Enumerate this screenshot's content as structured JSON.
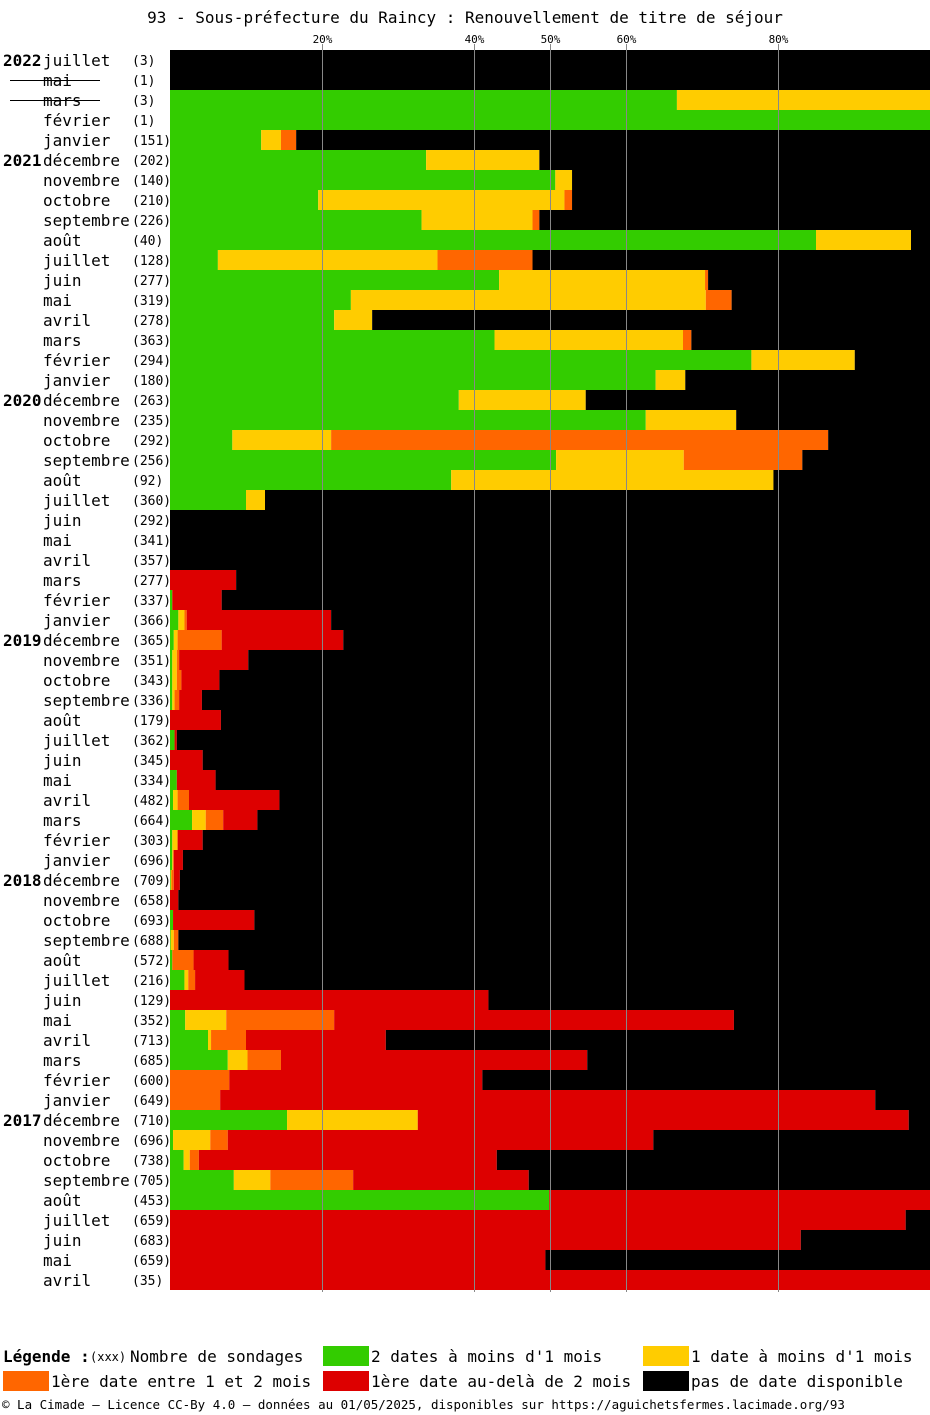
{
  "title": "93 - Sous-préfecture du Raincy : Renouvellement de titre de séjour",
  "colors": {
    "green": "#33cc00",
    "yellow": "#ffcc00",
    "orange": "#ff6600",
    "red": "#dd0000",
    "black": "#000000"
  },
  "legend": {
    "title": "Légende :",
    "count_marker": "(xxx)",
    "count_label": "Nombre de sondages",
    "items": [
      {
        "color": "#33cc00",
        "label": "2 dates à moins d'1 mois"
      },
      {
        "color": "#ffcc00",
        "label": "1 date à moins d'1 mois"
      },
      {
        "color": "#ff6600",
        "label": "1ère date entre 1 et 2 mois"
      },
      {
        "color": "#dd0000",
        "label": "1ère date au-delà de 2 mois"
      },
      {
        "color": "#000000",
        "label": "pas de date disponible"
      }
    ]
  },
  "footer": "© La Cimade — Licence CC-By 4.0 — données au 01/05/2025, disponibles sur https://aguichetsfermes.lacimade.org/93",
  "chart_data": {
    "type": "bar",
    "orientation": "horizontal",
    "stacked": true,
    "xlim": [
      0,
      100
    ],
    "x_ticks": [
      20,
      40,
      50,
      60,
      80
    ],
    "x_tick_labels": [
      "20%",
      "40%",
      "50%",
      "60%",
      "80%"
    ],
    "series_order": [
      "green",
      "yellow",
      "orange",
      "red",
      "black"
    ],
    "rows": [
      {
        "year": "2022",
        "month": "juillet",
        "count": "(3)",
        "sep": true,
        "values": [
          0,
          0,
          0,
          0,
          100
        ]
      },
      {
        "year": "",
        "month": "mai",
        "count": "(1)",
        "sep": true,
        "values": [
          0,
          0,
          0,
          0,
          100
        ]
      },
      {
        "year": "",
        "month": "mars",
        "count": "(3)",
        "values": [
          66.7,
          33.3,
          0,
          0,
          0
        ]
      },
      {
        "year": "",
        "month": "février",
        "count": "(1)",
        "values": [
          100,
          0,
          0,
          0,
          0
        ]
      },
      {
        "year": "",
        "month": "janvier",
        "count": "(151)",
        "values": [
          12.0,
          2.6,
          2.0,
          0,
          83.4
        ]
      },
      {
        "year": "2021",
        "month": "décembre",
        "count": "(202)",
        "values": [
          33.7,
          14.9,
          0,
          0,
          51.4
        ]
      },
      {
        "year": "",
        "month": "novembre",
        "count": "(140)",
        "values": [
          50.7,
          2.2,
          0,
          0,
          47.1
        ]
      },
      {
        "year": "",
        "month": "octobre",
        "count": "(210)",
        "values": [
          19.5,
          32.4,
          1.0,
          0,
          47.1
        ]
      },
      {
        "year": "",
        "month": "septembre",
        "count": "(226)",
        "values": [
          33.1,
          14.6,
          0.9,
          0,
          51.4
        ]
      },
      {
        "year": "",
        "month": "août",
        "count": "(40)",
        "values": [
          85,
          12.5,
          0,
          0,
          2.5
        ]
      },
      {
        "year": "",
        "month": "juillet",
        "count": "(128)",
        "values": [
          6.3,
          28.9,
          12.5,
          0,
          52.3
        ]
      },
      {
        "year": "",
        "month": "juin",
        "count": "(277)",
        "values": [
          43.3,
          27.1,
          0.4,
          0,
          29.2
        ]
      },
      {
        "year": "",
        "month": "mai",
        "count": "(319)",
        "values": [
          23.8,
          46.7,
          3.4,
          0,
          26.1
        ]
      },
      {
        "year": "",
        "month": "avril",
        "count": "(278)",
        "values": [
          21.6,
          5.0,
          0,
          0,
          73.4
        ]
      },
      {
        "year": "",
        "month": "mars",
        "count": "(363)",
        "values": [
          42.7,
          24.8,
          1.1,
          0,
          31.4
        ]
      },
      {
        "year": "",
        "month": "février",
        "count": "(294)",
        "values": [
          76.5,
          13.6,
          0,
          0,
          9.9
        ]
      },
      {
        "year": "",
        "month": "janvier",
        "count": "(180)",
        "values": [
          63.9,
          3.9,
          0,
          0,
          32.2
        ]
      },
      {
        "year": "2020",
        "month": "décembre",
        "count": "(263)",
        "values": [
          38.0,
          16.7,
          0,
          0,
          45.3
        ]
      },
      {
        "year": "",
        "month": "novembre",
        "count": "(235)",
        "values": [
          62.6,
          11.9,
          0,
          0,
          25.5
        ]
      },
      {
        "year": "",
        "month": "octobre",
        "count": "(292)",
        "values": [
          8.2,
          13.0,
          65.4,
          0,
          13.4
        ]
      },
      {
        "year": "",
        "month": "septembre",
        "count": "(256)",
        "values": [
          50.8,
          16.8,
          15.6,
          0,
          16.8
        ]
      },
      {
        "year": "",
        "month": "août",
        "count": "(92)",
        "values": [
          37.0,
          42.4,
          0,
          0,
          20.6
        ]
      },
      {
        "year": "",
        "month": "juillet",
        "count": "(360)",
        "values": [
          10.0,
          2.5,
          0,
          0,
          87.5
        ]
      },
      {
        "year": "",
        "month": "juin",
        "count": "(292)",
        "values": [
          0,
          0,
          0,
          0,
          100
        ]
      },
      {
        "year": "",
        "month": "mai",
        "count": "(341)",
        "values": [
          0,
          0,
          0,
          0,
          100
        ]
      },
      {
        "year": "",
        "month": "avril",
        "count": "(357)",
        "values": [
          0,
          0,
          0,
          0,
          100
        ]
      },
      {
        "year": "",
        "month": "mars",
        "count": "(277)",
        "values": [
          0,
          0,
          0,
          8.7,
          91.3
        ]
      },
      {
        "year": "",
        "month": "février",
        "count": "(337)",
        "values": [
          0.3,
          0,
          0,
          6.5,
          93.2
        ]
      },
      {
        "year": "",
        "month": "janvier",
        "count": "(366)",
        "values": [
          1.1,
          0.8,
          0.3,
          19.0,
          78.8
        ]
      },
      {
        "year": "2019",
        "month": "décembre",
        "count": "(365)",
        "values": [
          0.5,
          0.5,
          5.8,
          16.0,
          77.2
        ]
      },
      {
        "year": "",
        "month": "novembre",
        "count": "(351)",
        "values": [
          0.3,
          0.6,
          0.3,
          9.1,
          89.7
        ]
      },
      {
        "year": "",
        "month": "octobre",
        "count": "(343)",
        "values": [
          0.3,
          0.6,
          0.6,
          5.0,
          93.5
        ]
      },
      {
        "year": "",
        "month": "septembre",
        "count": "(336)",
        "values": [
          0.3,
          0.3,
          0.6,
          3.0,
          95.8
        ]
      },
      {
        "year": "",
        "month": "août",
        "count": "(179)",
        "values": [
          0,
          0,
          0,
          6.7,
          93.3
        ]
      },
      {
        "year": "",
        "month": "juillet",
        "count": "(362)",
        "values": [
          0.6,
          0,
          0,
          0.3,
          99.1
        ]
      },
      {
        "year": "",
        "month": "juin",
        "count": "(345)",
        "values": [
          0,
          0,
          0,
          4.3,
          95.7
        ]
      },
      {
        "year": "",
        "month": "mai",
        "count": "(334)",
        "values": [
          0.9,
          0,
          0,
          5.1,
          94.0
        ]
      },
      {
        "year": "",
        "month": "avril",
        "count": "(482)",
        "values": [
          0.4,
          0.6,
          1.5,
          11.9,
          85.6
        ]
      },
      {
        "year": "",
        "month": "mars",
        "count": "(664)",
        "values": [
          2.9,
          1.8,
          2.3,
          4.5,
          88.5
        ]
      },
      {
        "year": "",
        "month": "février",
        "count": "(303)",
        "values": [
          0.3,
          0.7,
          0,
          3.3,
          95.7
        ]
      },
      {
        "year": "",
        "month": "janvier",
        "count": "(696)",
        "values": [
          0.3,
          0.1,
          0.1,
          1.2,
          98.3
        ]
      },
      {
        "year": "2018",
        "month": "décembre",
        "count": "(709)",
        "values": [
          0.1,
          0.1,
          0.3,
          0.8,
          98.7
        ]
      },
      {
        "year": "",
        "month": "novembre",
        "count": "(658)",
        "values": [
          0,
          0,
          0,
          1.1,
          98.9
        ]
      },
      {
        "year": "",
        "month": "octobre",
        "count": "(693)",
        "values": [
          0.4,
          0,
          0,
          10.7,
          88.9
        ]
      },
      {
        "year": "",
        "month": "septembre",
        "count": "(688)",
        "values": [
          0.1,
          0.4,
          0.6,
          0,
          98.9
        ]
      },
      {
        "year": "",
        "month": "août",
        "count": "(572)",
        "values": [
          0.3,
          0,
          2.8,
          4.6,
          92.3
        ]
      },
      {
        "year": "",
        "month": "juillet",
        "count": "(216)",
        "values": [
          1.9,
          0.5,
          0.9,
          6.5,
          90.2
        ]
      },
      {
        "year": "",
        "month": "juin",
        "count": "(129)",
        "values": [
          0,
          0,
          0,
          41.9,
          58.1
        ]
      },
      {
        "year": "",
        "month": "mai",
        "count": "(352)",
        "values": [
          2.0,
          5.4,
          14.2,
          52.6,
          25.8
        ]
      },
      {
        "year": "",
        "month": "avril",
        "count": "(713)",
        "values": [
          5.0,
          0.4,
          4.6,
          18.4,
          71.6
        ]
      },
      {
        "year": "",
        "month": "mars",
        "count": "(685)",
        "values": [
          7.6,
          2.6,
          4.4,
          40.3,
          45.1
        ]
      },
      {
        "year": "",
        "month": "février",
        "count": "(600)",
        "values": [
          0,
          0,
          7.8,
          33.3,
          58.9
        ]
      },
      {
        "year": "",
        "month": "janvier",
        "count": "(649)",
        "values": [
          0,
          0,
          6.6,
          86.2,
          7.2
        ]
      },
      {
        "year": "2017",
        "month": "décembre",
        "count": "(710)",
        "values": [
          15.4,
          17.2,
          0,
          64.6,
          2.8
        ]
      },
      {
        "year": "",
        "month": "novembre",
        "count": "(696)",
        "values": [
          0.4,
          4.9,
          2.3,
          56.0,
          36.4
        ]
      },
      {
        "year": "",
        "month": "octobre",
        "count": "(738)",
        "values": [
          1.8,
          0.8,
          1.2,
          39.2,
          57.0
        ]
      },
      {
        "year": "",
        "month": "septembre",
        "count": "(705)",
        "values": [
          8.4,
          4.8,
          10.9,
          23.1,
          52.8
        ]
      },
      {
        "year": "",
        "month": "août",
        "count": "(453)",
        "values": [
          49.9,
          0,
          0,
          50.1,
          0
        ]
      },
      {
        "year": "",
        "month": "juillet",
        "count": "(659)",
        "values": [
          0,
          0,
          0,
          96.8,
          3.2
        ]
      },
      {
        "year": "",
        "month": "juin",
        "count": "(683)",
        "values": [
          0,
          0,
          0,
          83.0,
          17.0
        ]
      },
      {
        "year": "",
        "month": "mai",
        "count": "(659)",
        "values": [
          0,
          0,
          0,
          49.4,
          50.6
        ]
      },
      {
        "year": "",
        "month": "avril",
        "count": "(35)",
        "values": [
          0,
          0,
          0,
          100,
          0
        ]
      }
    ]
  }
}
